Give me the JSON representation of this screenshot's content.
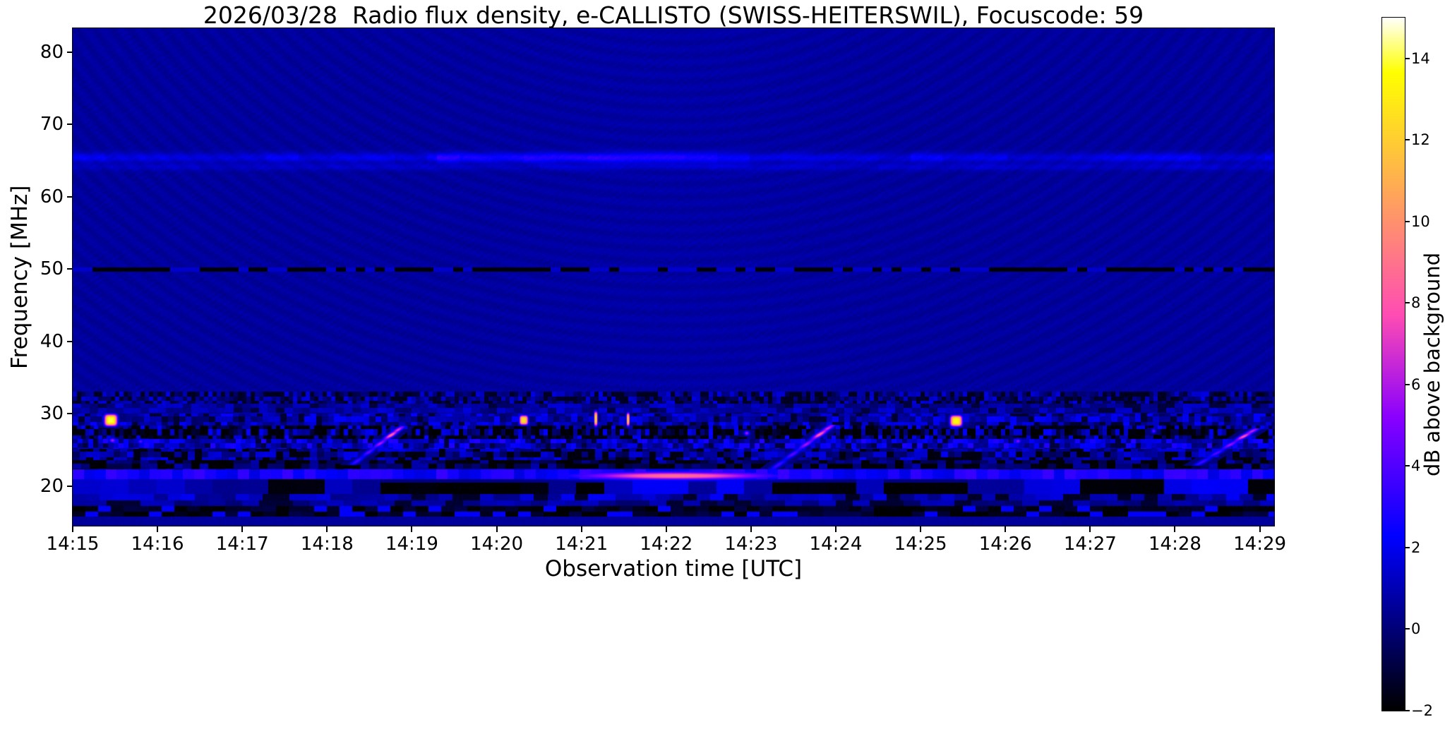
{
  "chart_data": {
    "type": "heatmap",
    "subtype": "radio-spectrogram",
    "title": "2026/03/28  Radio flux density, e-CALLISTO (SWISS-HEITERSWIL), Focuscode: 59",
    "date": "2026/03/28",
    "network": "e-CALLISTO",
    "station": "SWISS-HEITERSWIL",
    "focuscode": "59",
    "xlabel": "Observation time [UTC]",
    "ylabel": "Frequency [MHz]",
    "colorbar_label": "dB above background",
    "colormap": "gnuplot2",
    "time_start_utc": "14:15",
    "time_span_minutes": [
      0,
      14.17
    ],
    "freq_range_mhz": [
      14.5,
      83.3
    ],
    "value_range_db": [
      -2,
      15
    ],
    "background_db": 0.6,
    "grid": false,
    "x_ticks": [
      {
        "minute": 0,
        "label": "14:15"
      },
      {
        "minute": 1,
        "label": "14:16"
      },
      {
        "minute": 2,
        "label": "14:17"
      },
      {
        "minute": 3,
        "label": "14:18"
      },
      {
        "minute": 4,
        "label": "14:19"
      },
      {
        "minute": 5,
        "label": "14:20"
      },
      {
        "minute": 6,
        "label": "14:21"
      },
      {
        "minute": 7,
        "label": "14:22"
      },
      {
        "minute": 8,
        "label": "14:23"
      },
      {
        "minute": 9,
        "label": "14:24"
      },
      {
        "minute": 10,
        "label": "14:25"
      },
      {
        "minute": 11,
        "label": "14:26"
      },
      {
        "minute": 12,
        "label": "14:27"
      },
      {
        "minute": 13,
        "label": "14:28"
      },
      {
        "minute": 14,
        "label": "14:29"
      }
    ],
    "y_ticks": [
      {
        "freq": 20,
        "label": "20"
      },
      {
        "freq": 30,
        "label": "30"
      },
      {
        "freq": 40,
        "label": "40"
      },
      {
        "freq": 50,
        "label": "50"
      },
      {
        "freq": 60,
        "label": "60"
      },
      {
        "freq": 70,
        "label": "70"
      },
      {
        "freq": 80,
        "label": "80"
      }
    ],
    "colorbar_ticks": [
      {
        "value": -2,
        "label": "−2"
      },
      {
        "value": 0,
        "label": "0"
      },
      {
        "value": 2,
        "label": "2"
      },
      {
        "value": 4,
        "label": "4"
      },
      {
        "value": 6,
        "label": "6"
      },
      {
        "value": 8,
        "label": "8"
      },
      {
        "value": 10,
        "label": "10"
      },
      {
        "value": 12,
        "label": "12"
      },
      {
        "value": 14,
        "label": "14"
      }
    ],
    "features": {
      "rfi_dark_dashed_line": {
        "freq_mhz": 49.9,
        "half_width_mhz": 0.28,
        "dash_period_min": 0.115,
        "dash_duty": 0.55,
        "dark_db": -2.0,
        "gap_db": 1.4
      },
      "faint_bands": [
        {
          "freq_mhz": 65.4,
          "half_width_mhz": 0.65,
          "level_db": 1.7,
          "patch_cell_min": 0.38,
          "boost_t_range": [
            4.3,
            7.6
          ],
          "boost_add": 0.6
        },
        {
          "freq_mhz": 64.1,
          "half_width_mhz": 0.45,
          "level_db": 1.0,
          "patch_cell_min": 0.5
        }
      ],
      "noise_bands": [
        {
          "f0_mhz": 31.4,
          "f1_mhz": 33.0,
          "base_db": 0.4,
          "amp_db": 1.5,
          "cell_t_min": 0.05,
          "cell_f_mhz": 0.6,
          "dark_prob": 0.3,
          "dark_db": -1.5
        },
        {
          "f0_mhz": 30.0,
          "f1_mhz": 31.4,
          "base_db": 0.7,
          "amp_db": 1.0,
          "cell_t_min": 0.1,
          "cell_f_mhz": 0.7,
          "dark_prob": 0.12,
          "dark_db": -1.0
        },
        {
          "f0_mhz": 28.4,
          "f1_mhz": 30.0,
          "base_db": 1.0,
          "amp_db": 1.4,
          "cell_t_min": 0.07,
          "cell_f_mhz": 0.8,
          "dark_prob": 0.15,
          "dark_db": -1.2
        },
        {
          "f0_mhz": 26.5,
          "f1_mhz": 28.4,
          "base_db": 0.3,
          "amp_db": 2.2,
          "cell_t_min": 0.05,
          "cell_f_mhz": 0.9,
          "dark_prob": 0.42,
          "dark_db": -2.0
        },
        {
          "f0_mhz": 25.1,
          "f1_mhz": 26.5,
          "base_db": 1.4,
          "amp_db": 1.6,
          "cell_t_min": 0.06,
          "cell_f_mhz": 0.7,
          "dark_prob": 0.12,
          "dark_db": -1.0
        },
        {
          "f0_mhz": 23.6,
          "f1_mhz": 25.1,
          "base_db": 0.7,
          "amp_db": 1.4,
          "cell_t_min": 0.08,
          "cell_f_mhz": 0.75,
          "dark_prob": 0.3,
          "dark_db": -1.8
        },
        {
          "f0_mhz": 22.3,
          "f1_mhz": 23.6,
          "base_db": 0.0,
          "amp_db": 1.0,
          "cell_t_min": 0.1,
          "cell_f_mhz": 0.7,
          "dark_prob": 0.42,
          "dark_db": -2.0
        },
        {
          "f0_mhz": 20.9,
          "f1_mhz": 22.3,
          "base_db": 2.6,
          "amp_db": 0.9,
          "cell_t_min": 0.13,
          "cell_f_mhz": 1.6,
          "dark_prob": 0.0,
          "dark_db": 0.0
        },
        {
          "f0_mhz": 18.9,
          "f1_mhz": 20.9,
          "base_db": 1.2,
          "amp_db": 1.0,
          "cell_t_min": 0.33,
          "cell_f_mhz": 2.1,
          "dark_prob": 0.5,
          "dark_db": -2.0
        },
        {
          "f0_mhz": 18.0,
          "f1_mhz": 18.9,
          "base_db": 1.2,
          "amp_db": 1.0,
          "cell_t_min": 0.16,
          "cell_f_mhz": 1.0,
          "dark_prob": 0.2,
          "dark_db": -1.4
        },
        {
          "f0_mhz": 17.2,
          "f1_mhz": 18.0,
          "base_db": 0.5,
          "amp_db": 0.8,
          "cell_t_min": 0.2,
          "cell_f_mhz": 0.9,
          "dark_prob": 0.25,
          "dark_db": -1.2
        },
        {
          "f0_mhz": 15.8,
          "f1_mhz": 17.2,
          "base_db": -1.2,
          "amp_db": 0.5,
          "cell_t_min": 0.15,
          "cell_f_mhz": 1.5,
          "dark_prob": 0.35,
          "dark_db": -2.0,
          "bright_prob": 0.18,
          "bright_db": 2.2
        }
      ],
      "bright_blobs": [
        {
          "t_min": 0.45,
          "f_mhz": 29.1,
          "sigma_t_min": 0.075,
          "sigma_f_mhz": 0.8,
          "peak_db": 14.0
        },
        {
          "t_min": 5.32,
          "f_mhz": 29.1,
          "sigma_t_min": 0.05,
          "sigma_f_mhz": 0.65,
          "peak_db": 12.5
        },
        {
          "t_min": 10.42,
          "f_mhz": 29.0,
          "sigma_t_min": 0.07,
          "sigma_f_mhz": 0.75,
          "peak_db": 13.5
        },
        {
          "t_min": 6.17,
          "f_mhz": 29.3,
          "sigma_t_min": 0.02,
          "sigma_f_mhz": 1.0,
          "peak_db": 12.0
        },
        {
          "t_min": 6.55,
          "f_mhz": 29.2,
          "sigma_t_min": 0.018,
          "sigma_f_mhz": 0.9,
          "peak_db": 11.5
        }
      ],
      "minor_spots": [
        {
          "t_min": 0.47,
          "f_mhz": 26.3,
          "sigma_t_min": 0.035,
          "sigma_f_mhz": 0.3,
          "peak_db": 6.0
        },
        {
          "t_min": 0.8,
          "f_mhz": 26.15,
          "sigma_t_min": 0.03,
          "sigma_f_mhz": 0.28,
          "peak_db": 4.5
        },
        {
          "t_min": 7.95,
          "f_mhz": 27.3,
          "sigma_t_min": 0.03,
          "sigma_f_mhz": 0.3,
          "peak_db": 6.0
        },
        {
          "t_min": 11.15,
          "f_mhz": 26.2,
          "sigma_t_min": 0.03,
          "sigma_f_mhz": 0.3,
          "peak_db": 5.5
        },
        {
          "t_min": 12.75,
          "f_mhz": 27.6,
          "sigma_t_min": 0.025,
          "sigma_f_mhz": 0.3,
          "peak_db": 4.5
        }
      ],
      "drifting_bursts": [
        {
          "t_start": 3.35,
          "f_start": 23.4,
          "t_end": 3.83,
          "f_end": 27.7,
          "peak_start_db": 3.5,
          "peak_end_db": 10.5,
          "sigma_t_min": 0.045
        },
        {
          "t_start": 8.32,
          "f_start": 22.9,
          "t_end": 8.9,
          "f_end": 27.9,
          "peak_start_db": 3.5,
          "peak_end_db": 10.0,
          "sigma_t_min": 0.05
        },
        {
          "t_start": 13.32,
          "f_start": 23.3,
          "t_end": 13.9,
          "f_end": 27.5,
          "peak_start_db": 3.5,
          "peak_end_db": 9.5,
          "sigma_t_min": 0.05
        }
      ],
      "slow_drift_feature": {
        "t_center_min": 7.1,
        "f_center_mhz": 21.4,
        "half_len_t_min": 1.15,
        "half_wid_f_mhz": 0.55,
        "peak_db": 9.0
      }
    }
  }
}
